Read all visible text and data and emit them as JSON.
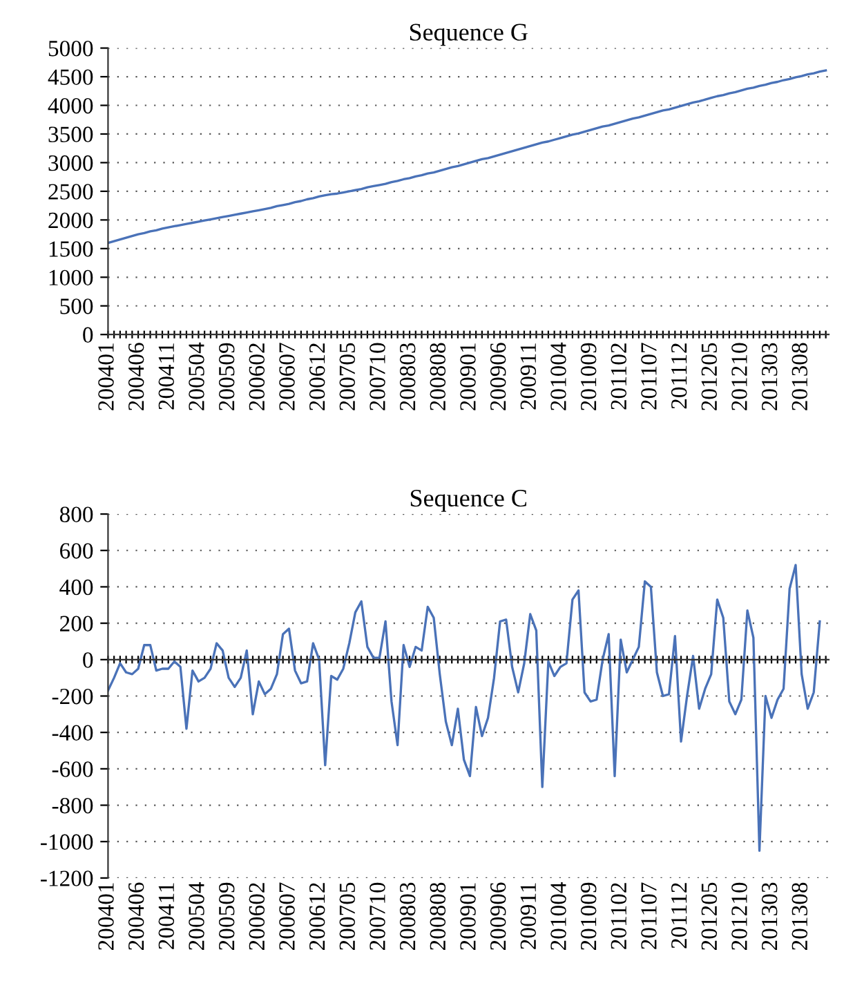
{
  "chart_data": [
    {
      "type": "line",
      "title": "Sequence G",
      "categories": [
        "200401",
        null,
        null,
        null,
        null,
        "200406",
        null,
        null,
        null,
        null,
        "200411",
        null,
        null,
        null,
        null,
        "200504",
        null,
        null,
        null,
        null,
        "200509",
        null,
        null,
        null,
        null,
        "200602",
        null,
        null,
        null,
        null,
        "200607",
        null,
        null,
        null,
        null,
        "200612",
        null,
        null,
        null,
        null,
        "200705",
        null,
        null,
        null,
        null,
        "200710",
        null,
        null,
        null,
        null,
        "200803",
        null,
        null,
        null,
        null,
        "200808",
        null,
        null,
        null,
        null,
        "200901",
        null,
        null,
        null,
        null,
        "200906",
        null,
        null,
        null,
        null,
        "200911",
        null,
        null,
        null,
        null,
        "201004",
        null,
        null,
        null,
        null,
        "201009",
        null,
        null,
        null,
        null,
        "201102",
        null,
        null,
        null,
        null,
        "201107",
        null,
        null,
        null,
        null,
        "201112",
        null,
        null,
        null,
        null,
        "201205",
        null,
        null,
        null,
        null,
        "201210",
        null,
        null,
        null,
        null,
        "201303",
        null,
        null,
        null,
        null,
        "201308",
        null,
        null,
        null,
        null
      ],
      "series": [
        {
          "color": "#4a72b8",
          "values": [
            1600,
            1630,
            1660,
            1690,
            1720,
            1750,
            1770,
            1800,
            1820,
            1850,
            1870,
            1890,
            1910,
            1930,
            1950,
            1970,
            1990,
            2010,
            2030,
            2050,
            2070,
            2090,
            2110,
            2130,
            2150,
            2170,
            2190,
            2210,
            2240,
            2260,
            2280,
            2310,
            2330,
            2360,
            2380,
            2410,
            2430,
            2450,
            2460,
            2480,
            2500,
            2520,
            2540,
            2570,
            2590,
            2610,
            2630,
            2660,
            2680,
            2710,
            2730,
            2760,
            2780,
            2810,
            2830,
            2860,
            2890,
            2920,
            2940,
            2970,
            3000,
            3030,
            3060,
            3080,
            3110,
            3140,
            3170,
            3200,
            3230,
            3260,
            3290,
            3320,
            3350,
            3370,
            3400,
            3430,
            3460,
            3490,
            3510,
            3540,
            3570,
            3600,
            3630,
            3650,
            3680,
            3710,
            3740,
            3770,
            3790,
            3820,
            3850,
            3880,
            3910,
            3930,
            3960,
            3990,
            4020,
            4050,
            4070,
            4100,
            4130,
            4160,
            4180,
            4210,
            4230,
            4260,
            4290,
            4310,
            4340,
            4360,
            4390,
            4410,
            4440,
            4460,
            4490,
            4510,
            4540,
            4560,
            4590,
            4610
          ]
        }
      ],
      "ylim": [
        0,
        5000
      ],
      "yticks": [
        0,
        500,
        1000,
        1500,
        2000,
        2500,
        3000,
        3500,
        4000,
        4500,
        5000
      ],
      "grid": "y",
      "line_style": "solid"
    },
    {
      "type": "line",
      "title": "Sequence C",
      "categories": [
        "200401",
        null,
        null,
        null,
        null,
        "200406",
        null,
        null,
        null,
        null,
        "200411",
        null,
        null,
        null,
        null,
        "200504",
        null,
        null,
        null,
        null,
        "200509",
        null,
        null,
        null,
        null,
        "200602",
        null,
        null,
        null,
        null,
        "200607",
        null,
        null,
        null,
        null,
        "200612",
        null,
        null,
        null,
        null,
        "200705",
        null,
        null,
        null,
        null,
        "200710",
        null,
        null,
        null,
        null,
        "200803",
        null,
        null,
        null,
        null,
        "200808",
        null,
        null,
        null,
        null,
        "200901",
        null,
        null,
        null,
        null,
        "200906",
        null,
        null,
        null,
        null,
        "200911",
        null,
        null,
        null,
        null,
        "201004",
        null,
        null,
        null,
        null,
        "201009",
        null,
        null,
        null,
        null,
        "201102",
        null,
        null,
        null,
        null,
        "201107",
        null,
        null,
        null,
        null,
        "201112",
        null,
        null,
        null,
        null,
        "201205",
        null,
        null,
        null,
        null,
        "201210",
        null,
        null,
        null,
        null,
        "201303",
        null,
        null,
        null,
        null,
        "201308",
        null,
        null,
        null,
        null
      ],
      "series": [
        {
          "color": "#4a72b8",
          "values": [
            -170,
            -100,
            -20,
            -70,
            -80,
            -50,
            80,
            80,
            -60,
            -50,
            -50,
            -10,
            -40,
            -380,
            -60,
            -120,
            -100,
            -50,
            90,
            50,
            -100,
            -150,
            -100,
            50,
            -300,
            -120,
            -190,
            -160,
            -80,
            140,
            170,
            -60,
            -130,
            -120,
            90,
            0,
            -580,
            -90,
            -110,
            -50,
            90,
            260,
            320,
            70,
            10,
            10,
            210,
            -230,
            -470,
            80,
            -40,
            70,
            50,
            290,
            230,
            -80,
            -340,
            -470,
            -270,
            -550,
            -640,
            -260,
            -420,
            -320,
            -100,
            210,
            220,
            -40,
            -180,
            -20,
            250,
            160,
            -700,
            -10,
            -90,
            -40,
            -20,
            330,
            380,
            -180,
            -230,
            -220,
            0,
            140,
            -640,
            110,
            -70,
            0,
            70,
            430,
            400,
            -70,
            -200,
            -190,
            130,
            -450,
            -200,
            20,
            -270,
            -160,
            -80,
            330,
            230,
            -230,
            -300,
            -220,
            270,
            120,
            -1050,
            -200,
            -320,
            -220,
            -160,
            390,
            520,
            -80,
            -270,
            -180,
            210,
            null
          ]
        }
      ],
      "ylim": [
        -1200,
        800
      ],
      "yticks": [
        -1200,
        -1000,
        -800,
        -600,
        -400,
        -200,
        0,
        200,
        400,
        600,
        800
      ],
      "grid": "y",
      "line_style": "solid"
    }
  ]
}
